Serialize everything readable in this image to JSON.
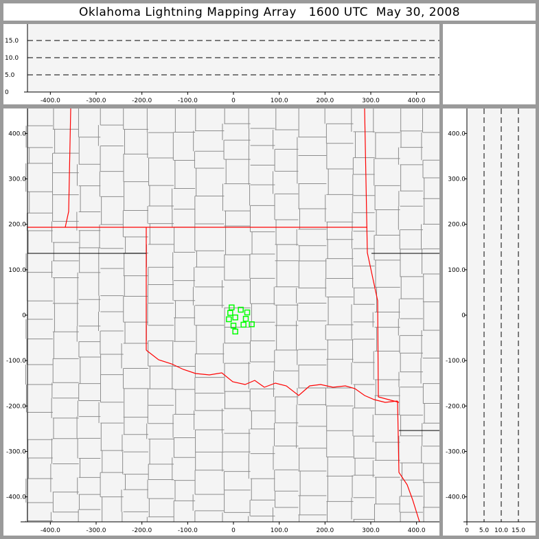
{
  "title": "Oklahoma Lightning Mapping Array   1600 UTC  May 30, 2008",
  "colors": {
    "background": "#f4f4f4",
    "state_border": "#ff0000",
    "county_border": "#8c8c8c",
    "source_marker": "#00ff00",
    "frame": "#9a9a9a"
  },
  "chart_data": [
    {
      "panel": "plan-view",
      "type": "scatter",
      "xlim": [
        -450,
        450
      ],
      "ylim": [
        -455,
        455
      ],
      "xticks": [
        "-400.0",
        "-300.0",
        "-200.0",
        "-100.0",
        "0",
        "100.0",
        "200.0",
        "300.0",
        "400.0"
      ],
      "yticks": [
        "400.0",
        "300.0",
        "200.0",
        "100.0",
        "0",
        "-100.0",
        "-200.0",
        "-300.0",
        "-400.0"
      ],
      "marker": "hollow-square",
      "points": [
        [
          -4,
          17
        ],
        [
          16,
          12
        ],
        [
          30,
          6
        ],
        [
          -7,
          5
        ],
        [
          4,
          -5
        ],
        [
          27,
          -8
        ],
        [
          -10,
          -9
        ],
        [
          0,
          -23
        ],
        [
          22,
          -21
        ],
        [
          40,
          -20
        ],
        [
          4,
          -36
        ]
      ]
    },
    {
      "panel": "east-west-altitude",
      "type": "scatter",
      "xlim": [
        -450,
        450
      ],
      "ylim": [
        0,
        20
      ],
      "xticks": [
        "-400.0",
        "-300.0",
        "-200.0",
        "-100.0",
        "0",
        "100.0",
        "200.0",
        "300.0",
        "400.0"
      ],
      "yticks": [
        "0",
        "5.0",
        "10.0",
        "15.0"
      ],
      "grid": "dashed at 5, 10, 15",
      "points": []
    },
    {
      "panel": "north-south-altitude",
      "type": "scatter",
      "xlim": [
        0,
        20
      ],
      "ylim": [
        -455,
        455
      ],
      "xticks": [
        "0",
        "5.0",
        "10.0",
        "15.0"
      ],
      "yticks": [
        "400.0",
        "300.0",
        "200.0",
        "100.0",
        "0",
        "-100.0",
        "-200.0",
        "-300.0",
        "-400.0"
      ],
      "grid": "dashed at 5, 10, 15",
      "points": []
    }
  ]
}
